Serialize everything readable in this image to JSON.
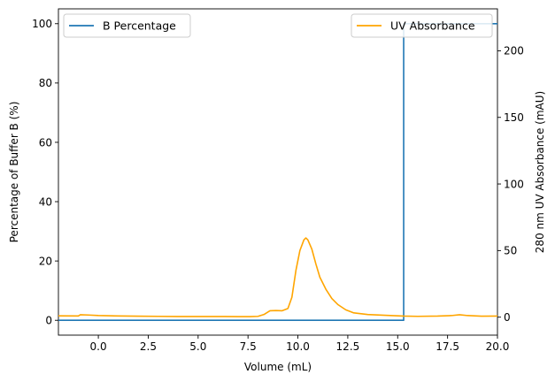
{
  "chart_data": {
    "type": "line",
    "xlabel": "Volume (mL)",
    "ylabel_left": "Percentage of Buffer B (%)",
    "ylabel_right": "280 nm UV Absorbance (mAU)",
    "xlim": [
      -2,
      20
    ],
    "ylim_left": [
      -5,
      105
    ],
    "ylim_right": [
      -13.5,
      231.5
    ],
    "x_ticks": [
      0.0,
      2.5,
      5.0,
      7.5,
      10.0,
      12.5,
      15.0,
      17.5,
      20.0
    ],
    "x_tick_labels": [
      "0.0",
      "2.5",
      "5.0",
      "7.5",
      "10.0",
      "12.5",
      "15.0",
      "17.5",
      "20.0"
    ],
    "y_left_ticks": [
      0,
      20,
      40,
      60,
      80,
      100
    ],
    "y_left_tick_labels": [
      "0",
      "20",
      "40",
      "60",
      "80",
      "100"
    ],
    "y_right_ticks": [
      0,
      50,
      100,
      150,
      200
    ],
    "y_right_tick_labels": [
      "0",
      "50",
      "100",
      "150",
      "200"
    ],
    "legend_left": {
      "placement": "upper-left",
      "label": "B Percentage"
    },
    "legend_right": {
      "placement": "upper-right",
      "label": "UV Absorbance"
    },
    "series": [
      {
        "name": "B Percentage",
        "axis": "left",
        "color": "#1f77b4",
        "x": [
          -2,
          15.3,
          15.3,
          20
        ],
        "y": [
          0,
          0,
          100,
          100
        ]
      },
      {
        "name": "UV Absorbance",
        "axis": "right",
        "color": "#ffa500",
        "x": [
          -2,
          -1.0,
          -0.9,
          -0.5,
          0,
          1,
          2,
          3,
          4,
          5,
          6,
          7,
          7.6,
          8.0,
          8.3,
          8.6,
          8.9,
          9.2,
          9.5,
          9.7,
          9.9,
          10.1,
          10.3,
          10.4,
          10.5,
          10.7,
          10.9,
          11.1,
          11.4,
          11.7,
          12.0,
          12.4,
          12.8,
          13.5,
          14.5,
          15.3,
          16.0,
          17.0,
          17.7,
          18.1,
          18.5,
          19.2,
          20
        ],
        "y": [
          1.0,
          0.9,
          1.8,
          1.6,
          1.2,
          0.9,
          0.7,
          0.6,
          0.5,
          0.5,
          0.5,
          0.4,
          0.4,
          0.6,
          2.0,
          4.8,
          5.0,
          4.8,
          6.5,
          15.0,
          35.0,
          50.0,
          58.0,
          59.5,
          58.0,
          51.0,
          40.0,
          30.0,
          21.0,
          14.0,
          9.5,
          5.5,
          3.2,
          2.0,
          1.3,
          0.8,
          0.6,
          0.8,
          1.2,
          1.8,
          1.2,
          0.7,
          0.8
        ]
      }
    ]
  }
}
